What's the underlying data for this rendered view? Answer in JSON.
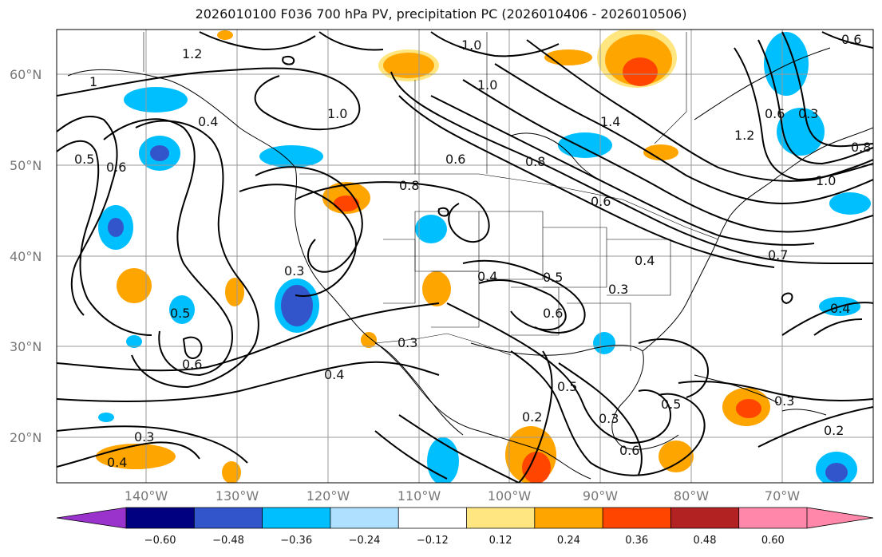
{
  "title": "2026010100 F036 700 hPa PV, precipitation PC (2026010406 - 2026010506)",
  "lat_labels": [
    "60°N",
    "50°N",
    "40°N",
    "30°N",
    "20°N"
  ],
  "lon_labels": [
    "140°W",
    "130°W",
    "120°W",
    "110°W",
    "100°W",
    "90°W",
    "80°W",
    "70°W"
  ],
  "contour_labels": [
    {
      "t": "1.2"
    },
    {
      "t": "1.0"
    },
    {
      "t": "1.0"
    },
    {
      "t": "1.0"
    },
    {
      "t": "1"
    },
    {
      "t": "0.5"
    },
    {
      "t": "0.6"
    },
    {
      "t": "0.4"
    },
    {
      "t": "0.6"
    },
    {
      "t": "0.8"
    },
    {
      "t": "0.8"
    },
    {
      "t": "0.6"
    },
    {
      "t": "0.4"
    },
    {
      "t": "0.5"
    },
    {
      "t": "0.6"
    },
    {
      "t": "0.4"
    },
    {
      "t": "0.3"
    },
    {
      "t": "0.3"
    },
    {
      "t": "0.5"
    },
    {
      "t": "0.6"
    },
    {
      "t": "0.4"
    },
    {
      "t": "0.3"
    },
    {
      "t": "0.5"
    },
    {
      "t": "0.3"
    },
    {
      "t": "0.6"
    },
    {
      "t": "0.5"
    },
    {
      "t": "0.3"
    },
    {
      "t": "0.2"
    },
    {
      "t": "0.2"
    },
    {
      "t": "0.3"
    },
    {
      "t": "0.4"
    },
    {
      "t": "0.7"
    },
    {
      "t": "0.8"
    },
    {
      "t": "1.2"
    },
    {
      "t": "1.0"
    },
    {
      "t": "0.6"
    },
    {
      "t": "0.3"
    },
    {
      "t": "0.6"
    },
    {
      "t": "0.4"
    },
    {
      "t": "1.4"
    }
  ],
  "colorbar": {
    "ticks": [
      "−0.60",
      "−0.48",
      "−0.36",
      "−0.24",
      "−0.12",
      "0.12",
      "0.24",
      "0.36",
      "0.48",
      "0.60"
    ],
    "colors": [
      "#9933cc",
      "#000080",
      "#3355cc",
      "#00bfff",
      "#b0e0ff",
      "#ffffff",
      "#ffe680",
      "#ffa500",
      "#ff4500",
      "#b22222",
      "#ff88aa"
    ]
  }
}
